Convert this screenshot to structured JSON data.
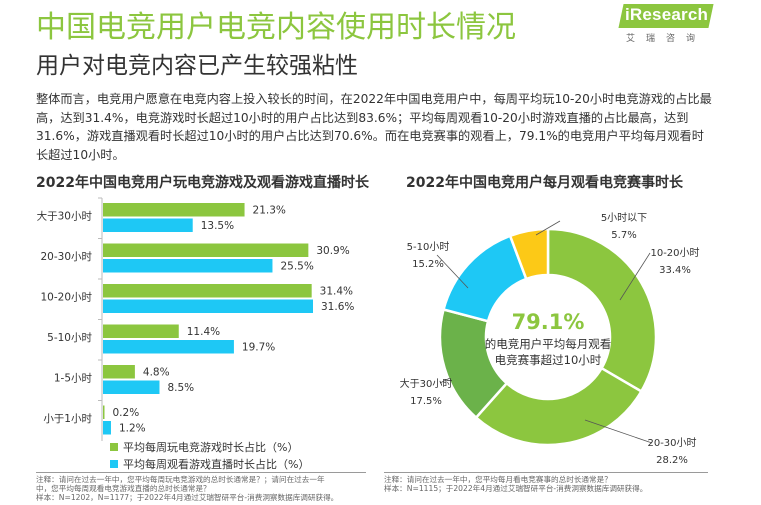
{
  "header": {
    "title": "中国电竞用户电竞内容使用时长情况",
    "subtitle": "用户对电竞内容已产生较强粘性",
    "logo_text": "iResearch",
    "logo_sub": "艾瑞咨询"
  },
  "intro": "整体而言，电竞用户愿意在电竞内容上投入较长的时间，在2022年中国电竞用户中，每周平均玩10-20小时电竞游戏的占比最高，达到31.4%，电竞游戏时长超过10小时的用户占比达到83.6%；平均每周观看10-20小时游戏直播的占比最高，达到31.6%，游戏直播观看时长超过10小时的用户占比达到70.6%。而在电竞赛事的观看上，79.1%的电竞用户平均每月观看时长超过10小时。",
  "colors": {
    "green": "#8cc63f",
    "cyan": "#1ec8f5",
    "yellow": "#fcc917",
    "dark_green": "#6bb24a",
    "axis": "#bbbbbb"
  },
  "chart_data": [
    {
      "type": "bar",
      "orientation": "horizontal",
      "title": "2022年中国电竞用户玩电竞游戏及观看游戏直播时长",
      "categories": [
        "大于30小时",
        "20-30小时",
        "10-20小时",
        "5-10小时",
        "1-5小时",
        "小于1小时"
      ],
      "series": [
        {
          "name": "平均每周玩电竞游戏时长占比（%）",
          "color": "#8cc63f",
          "values": [
            21.3,
            30.9,
            31.4,
            11.4,
            4.8,
            0.2
          ]
        },
        {
          "name": "平均每周观看游戏直播时长占比（%）",
          "color": "#1ec8f5",
          "values": [
            13.5,
            25.5,
            31.6,
            19.7,
            8.5,
            1.2
          ]
        }
      ],
      "xlim": [
        0,
        35
      ],
      "legend": "bottom",
      "note": {
        "line1": "注释：请问在过去一年中，您平均每周玩电竞游戏的总时长通常是？；请问在过去一年",
        "line2": "中，您平均每周观看电竞游戏直播的总时长通常是？",
        "line3": "样本：N=1202，N=1177；于2022年4月通过艾瑞智研平台-消费洞察数据库调研获得。"
      }
    },
    {
      "type": "pie",
      "variant": "donut",
      "title": "2022年中国电竞用户每月观看电竞赛事时长",
      "slices": [
        {
          "label": "10-20小时",
          "value": 33.4,
          "color": "#8cc63f"
        },
        {
          "label": "20-30小时",
          "value": 28.2,
          "color": "#8cc63f"
        },
        {
          "label": "大于30小时",
          "value": 17.5,
          "color": "#6bb24a"
        },
        {
          "label": "5-10小时",
          "value": 15.2,
          "color": "#1ec8f5"
        },
        {
          "label": "5小时以下",
          "value": 5.7,
          "color": "#fcc917"
        }
      ],
      "center": {
        "value": "79.1%",
        "line1": "的电竞用户平均每月观看",
        "line2": "电竞赛事超过10小时"
      },
      "note": {
        "line1": "注释：请问在过去一年中，您平均每月看电竞赛事的总时长通常是？",
        "line2": "样本：N=1115；于2022年4月通过艾瑞智研平台-消费洞察数据库调研获得。"
      }
    }
  ]
}
